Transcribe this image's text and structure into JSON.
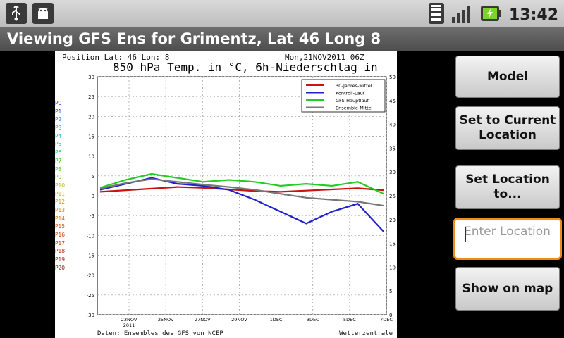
{
  "statusbar": {
    "icons": [
      "usb-icon",
      "android-debug-icon"
    ],
    "right_icons": [
      "wifi-icon",
      "signal-icon",
      "battery-charging-icon"
    ],
    "time": "13:42"
  },
  "titlebar": {
    "title": "Viewing GFS Ens for Grimentz, Lat 46 Long 8"
  },
  "chart": {
    "position_text": "Position  Lat: 46  Lon: 8",
    "date_text": "Mon,21NOV2011  06Z",
    "title": "850 hPa Temp. in °C, 6h-Niederschlag in mm",
    "footer_left": "Daten: Ensembles des GFS von NCEP",
    "footer_right": "Wetterzentrale",
    "members": [
      "P0",
      "P1",
      "P2",
      "P3",
      "P4",
      "P5",
      "P6",
      "P7",
      "P8",
      "P9",
      "P10",
      "P11",
      "P12",
      "P13",
      "P14",
      "P15",
      "P16",
      "P17",
      "P18",
      "P19",
      "P20"
    ],
    "member_colors": [
      "#2a2adf",
      "#2a2adf",
      "#1f7ad8",
      "#1aa6d6",
      "#19b8c2",
      "#18c4a8",
      "#1ec46a",
      "#2cc21f",
      "#5ac21a",
      "#8ac215",
      "#b2b812",
      "#d6a511",
      "#dd8c10",
      "#e0760f",
      "#e0640f",
      "#d8520f",
      "#c8430f",
      "#b8350f",
      "#a82a0f",
      "#962210",
      "#851c10"
    ]
  },
  "chart_data": {
    "type": "line",
    "title": "850 hPa Temp. in °C, 6h-Niederschlag in mm",
    "x_ticks": [
      "23NOV 2011",
      "25NOV",
      "27NOV",
      "29NOV",
      "1DEC",
      "3DEC",
      "5DEC",
      "7DEC"
    ],
    "y_left_ticks": [
      30,
      25,
      20,
      15,
      10,
      5,
      0,
      -5,
      -10,
      -15,
      -20,
      -25,
      -30
    ],
    "y_right_ticks": [
      50,
      45,
      40,
      35,
      30,
      25,
      20,
      15,
      10,
      5,
      0
    ],
    "ylim_left": [
      -30,
      30
    ],
    "ylim_right": [
      0,
      50
    ],
    "grid": true,
    "legend_position": "top-right",
    "series": [
      {
        "name": "30-Jahres-Mittel",
        "color": "#cc1111",
        "values": [
          1.0,
          1.4,
          1.8,
          2.2,
          2.0,
          1.6,
          1.2,
          1.0,
          1.3,
          1.6,
          1.9,
          1.4
        ]
      },
      {
        "name": "Kontroll-Lauf",
        "color": "#2222cc",
        "values": [
          1.5,
          3.0,
          4.5,
          3.0,
          2.5,
          1.5,
          -1.0,
          -4.0,
          -7.0,
          -4.0,
          -2.0,
          -9.0
        ]
      },
      {
        "name": "GFS-Hauptlauf",
        "color": "#22cc22",
        "values": [
          2.0,
          4.0,
          5.5,
          4.5,
          3.5,
          4.0,
          3.5,
          2.5,
          3.0,
          2.5,
          3.5,
          0.5
        ]
      },
      {
        "name": "Ensemble-Mittel",
        "color": "#777777",
        "values": [
          1.8,
          3.2,
          4.2,
          3.5,
          2.8,
          2.2,
          1.5,
          0.5,
          -0.5,
          -1.0,
          -1.5,
          -2.5
        ]
      }
    ]
  },
  "side": {
    "model_label": "Model",
    "set_current_label": "Set to Current Location",
    "set_location_label": "Set Location to...",
    "location_placeholder": "Enter Location",
    "location_value": "",
    "show_map_label": "Show on map"
  },
  "colors": {
    "accent": "#f28a1a",
    "titlebar": "#5a5a5a"
  }
}
